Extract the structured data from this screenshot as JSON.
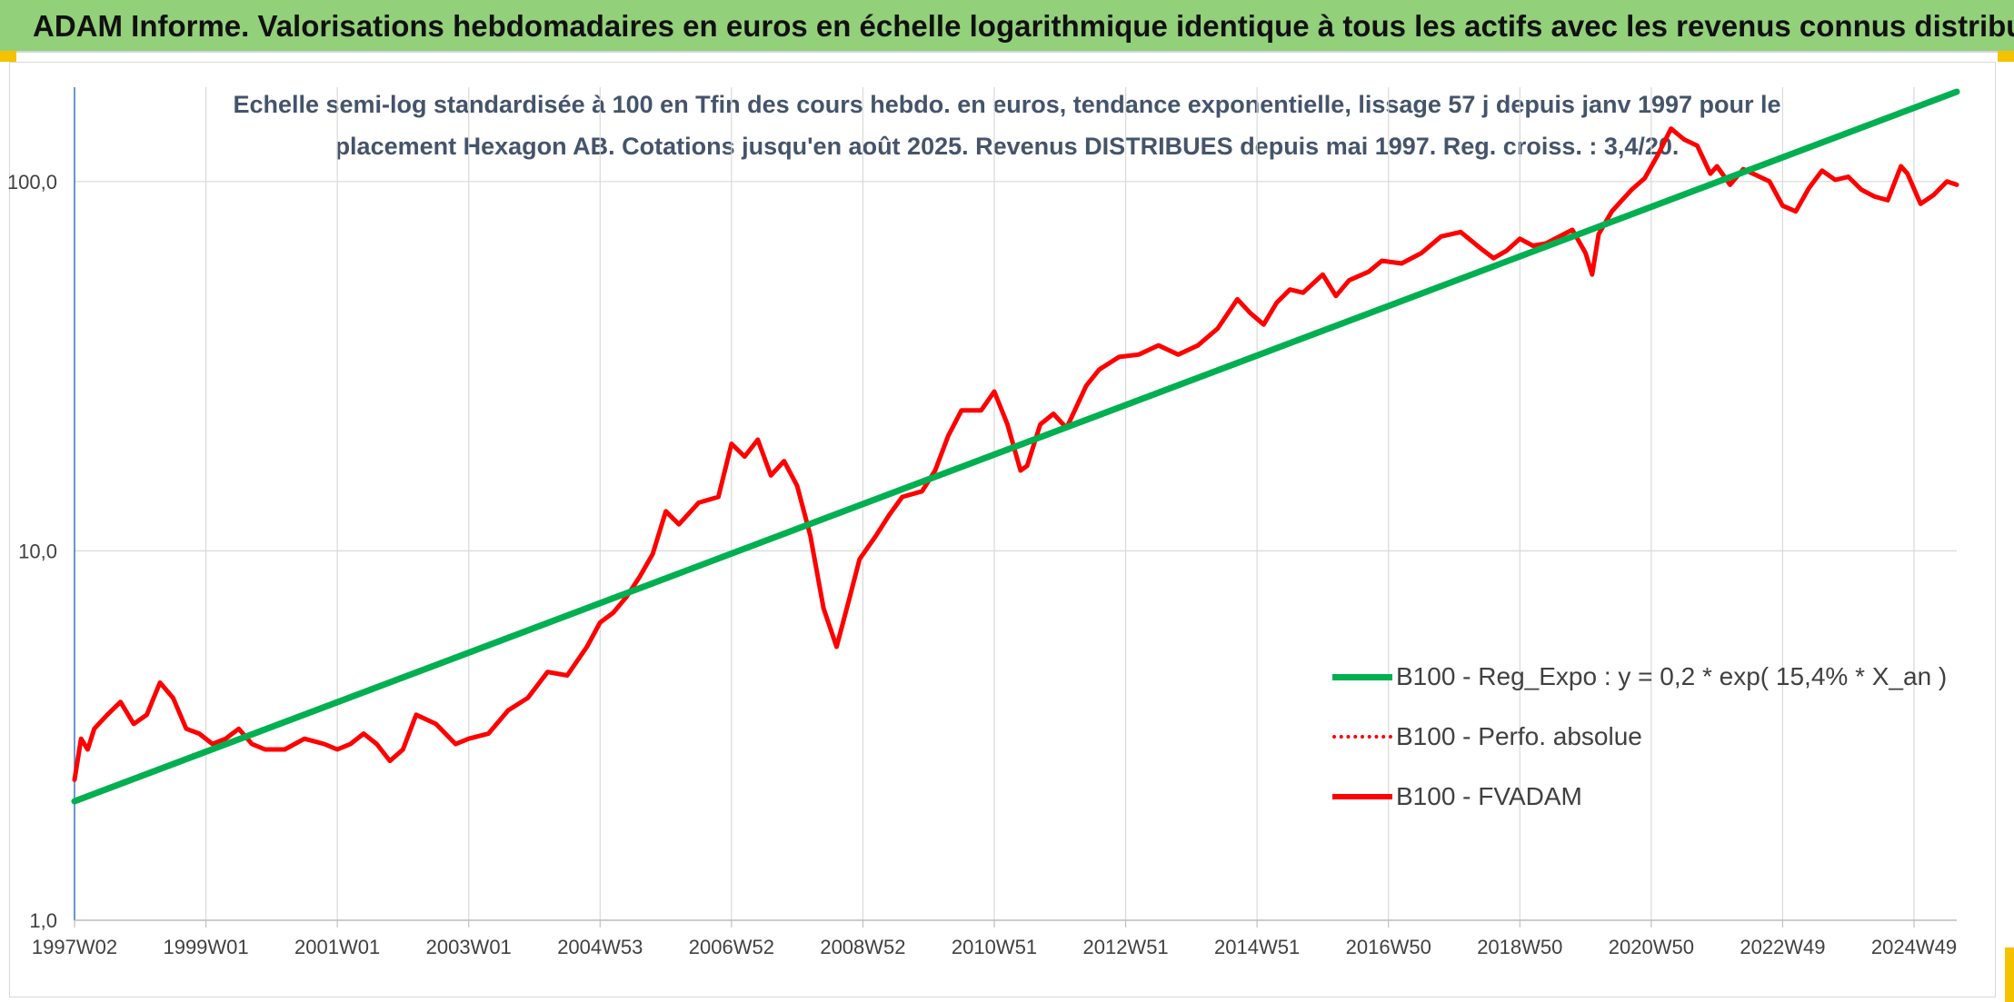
{
  "banner": {
    "title": "ADAM Informe. Valorisations hebdomadaires en euros en échelle logarithmique identique à tous les actifs avec les revenus connus distribués"
  },
  "chart_data": {
    "type": "line",
    "title_line1": "Echelle semi-log standardisée à 100 en Tfin des cours hebdo. en euros, tendance exponentielle, lissage 57 j depuis janv 1997 pour le",
    "title_line2": "placement Hexagon AB. Cotations jusqu'en août 2025. Revenus DISTRIBUES depuis mai 1997. Reg. croiss. : 3,4/20.",
    "yscale": "log",
    "ylim": [
      1,
      180
    ],
    "y_ticks": [
      1,
      10,
      100
    ],
    "y_tick_labels": [
      "1,0",
      "10,0",
      "100,0"
    ],
    "xlim": [
      1997.0,
      2025.65
    ],
    "x_ticks": [
      1997.0,
      1999.0,
      2001.0,
      2003.0,
      2005.0,
      2007.0,
      2009.0,
      2011.0,
      2013.0,
      2015.0,
      2017.0,
      2019.0,
      2021.0,
      2023.0,
      2025.0
    ],
    "x_tick_labels": [
      "1997W02",
      "1999W01",
      "2001W01",
      "2003W01",
      "2004W53",
      "2006W52",
      "2008W52",
      "2010W51",
      "2012W51",
      "2014W51",
      "2016W50",
      "2018W50",
      "2020W50",
      "2022W49",
      "2024W49"
    ],
    "grid": "vertical and horizontal",
    "legend_position": "bottom-right",
    "series": [
      {
        "name": "B100 - Reg_Expo : y = 0,2 * exp( 15,4% *  X_an )",
        "color": "#00b050",
        "style": "solid",
        "x": [
          1997.0,
          2025.65
        ],
        "y": [
          2.1,
          175
        ]
      },
      {
        "name": "B100 - Perfo. absolue",
        "color": "#ff0000",
        "style": "dotted",
        "x": [],
        "y": []
      },
      {
        "name": "B100 - FVADAM",
        "color": "#ff0000",
        "style": "solid",
        "x": [
          1997.0,
          1997.1,
          1997.2,
          1997.3,
          1997.5,
          1997.7,
          1997.9,
          1998.1,
          1998.3,
          1998.5,
          1998.7,
          1998.9,
          1999.1,
          1999.3,
          1999.5,
          1999.7,
          1999.9,
          2000.2,
          2000.5,
          2000.8,
          2001.0,
          2001.2,
          2001.4,
          2001.6,
          2001.8,
          2002.0,
          2002.2,
          2002.5,
          2002.8,
          2003.0,
          2003.3,
          2003.6,
          2003.9,
          2004.2,
          2004.5,
          2004.8,
          2005.0,
          2005.2,
          2005.4,
          2005.6,
          2005.8,
          2006.0,
          2006.2,
          2006.5,
          2006.8,
          2007.0,
          2007.2,
          2007.4,
          2007.6,
          2007.8,
          2008.0,
          2008.2,
          2008.4,
          2008.6,
          2008.8,
          2008.95,
          2009.2,
          2009.4,
          2009.6,
          2009.9,
          2010.1,
          2010.3,
          2010.5,
          2010.8,
          2011.0,
          2011.2,
          2011.4,
          2011.5,
          2011.7,
          2011.9,
          2012.1,
          2012.4,
          2012.6,
          2012.9,
          2013.2,
          2013.5,
          2013.8,
          2014.1,
          2014.4,
          2014.7,
          2014.9,
          2015.1,
          2015.3,
          2015.5,
          2015.7,
          2016.0,
          2016.2,
          2016.4,
          2016.7,
          2016.9,
          2017.2,
          2017.5,
          2017.8,
          2018.1,
          2018.4,
          2018.6,
          2018.8,
          2019.0,
          2019.2,
          2019.4,
          2019.6,
          2019.8,
          2020.0,
          2020.1,
          2020.2,
          2020.4,
          2020.7,
          2020.9,
          2021.1,
          2021.3,
          2021.5,
          2021.7,
          2021.9,
          2022.0,
          2022.2,
          2022.4,
          2022.6,
          2022.8,
          2023.0,
          2023.2,
          2023.4,
          2023.6,
          2023.8,
          2024.0,
          2024.2,
          2024.4,
          2024.6,
          2024.8,
          2024.9,
          2025.1,
          2025.3,
          2025.5,
          2025.65
        ],
        "y": [
          2.4,
          3.1,
          2.9,
          3.3,
          3.6,
          3.9,
          3.4,
          3.6,
          4.4,
          4.0,
          3.3,
          3.2,
          3.0,
          3.1,
          3.3,
          3.0,
          2.9,
          2.9,
          3.1,
          3.0,
          2.9,
          3.0,
          3.2,
          3.0,
          2.7,
          2.9,
          3.6,
          3.4,
          3.0,
          3.1,
          3.2,
          3.7,
          4.0,
          4.7,
          4.6,
          5.5,
          6.4,
          6.8,
          7.5,
          8.5,
          9.8,
          12.8,
          11.8,
          13.5,
          14.0,
          19.5,
          18.0,
          20.0,
          16.0,
          17.5,
          15.0,
          11.0,
          7.0,
          5.5,
          7.5,
          9.5,
          11.0,
          12.5,
          14.0,
          14.5,
          16.5,
          20.5,
          24.0,
          24.0,
          27.0,
          22.0,
          16.5,
          17.0,
          22.0,
          23.5,
          21.5,
          28.0,
          31.0,
          33.5,
          34.0,
          36.0,
          34.0,
          36.0,
          40.0,
          48.0,
          44.0,
          41.0,
          47.0,
          51.0,
          50.0,
          56.0,
          49.0,
          54.0,
          57.0,
          61.0,
          60.0,
          64.0,
          71.0,
          73.0,
          66.0,
          62.0,
          65.0,
          70.0,
          67.0,
          68.0,
          71.0,
          74.0,
          64.0,
          56.0,
          72.0,
          83.0,
          95.0,
          102.0,
          118.0,
          139.0,
          130.0,
          125.0,
          105.0,
          110.0,
          98.0,
          108.0,
          104.0,
          100.0,
          86.0,
          83.0,
          96.0,
          107.0,
          101.0,
          103.0,
          95.0,
          91.0,
          89.0,
          110.0,
          105.0,
          87.0,
          92.0,
          100.0,
          98.0
        ]
      }
    ]
  }
}
